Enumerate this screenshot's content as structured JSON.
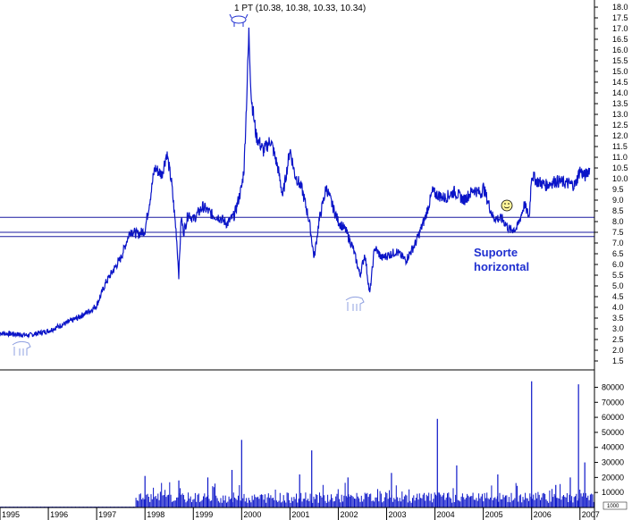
{
  "chart_data": {
    "type": "line",
    "title": "1 PT (10.38, 10.38, 10.33, 10.34)",
    "xlabel": "",
    "ylabel": "",
    "x_ticks": [
      "1995",
      "1996",
      "1997",
      "1998",
      "1999",
      "2000",
      "2001",
      "2002",
      "2003",
      "2004",
      "2005",
      "2006",
      "2007"
    ],
    "y_ticks": [
      "1.5",
      "2.0",
      "2.5",
      "3.0",
      "3.5",
      "4.0",
      "4.5",
      "5.0",
      "5.5",
      "6.0",
      "6.5",
      "7.0",
      "7.5",
      "8.0",
      "8.5",
      "9.0",
      "9.5",
      "10.0",
      "10.5",
      "11.0",
      "11.5",
      "12.0",
      "12.5",
      "13.0",
      "13.5",
      "14.0",
      "14.5",
      "15.0",
      "15.5",
      "16.0",
      "16.5",
      "17.0",
      "17.5",
      "18.0"
    ],
    "ylim": [
      1.5,
      18.0
    ],
    "xlim": [
      1995.0,
      2007.3
    ],
    "grid": false,
    "series": [
      {
        "values_x": [
          1995.0,
          1995.3,
          1995.6,
          1996.0,
          1996.3,
          1996.6,
          1996.9,
          1997.0,
          1997.2,
          1997.5,
          1997.7,
          1997.85,
          1998.0,
          1998.1,
          1998.2,
          1998.35,
          1998.45,
          1998.55,
          1998.65,
          1998.7,
          1998.75,
          1998.8,
          1998.9,
          1999.0,
          1999.2,
          1999.4,
          1999.55,
          1999.7,
          1999.85,
          2000.0,
          2000.05,
          2000.1,
          2000.15,
          2000.2,
          2000.3,
          2000.45,
          2000.6,
          2000.75,
          2000.85,
          2000.95,
          2001.0,
          2001.1,
          2001.25,
          2001.4,
          2001.5,
          2001.6,
          2001.75,
          2001.9,
          2002.0,
          2002.15,
          2002.3,
          2002.45,
          2002.55,
          2002.65,
          2002.75,
          2002.9,
          2003.0,
          2003.2,
          2003.4,
          2003.6,
          2003.8,
          2003.95,
          2004.0,
          2004.2,
          2004.4,
          2004.6,
          2004.8,
          2004.95,
          2005.0,
          2005.2,
          2005.4,
          2005.55,
          2005.7,
          2005.85,
          2005.95,
          2006.0,
          2006.1,
          2006.3,
          2006.5,
          2006.7,
          2006.9,
          2007.0,
          2007.1,
          2007.2
        ],
        "values_y": [
          2.8,
          2.75,
          2.7,
          2.9,
          3.2,
          3.5,
          3.9,
          4.1,
          5.2,
          6.3,
          7.6,
          7.4,
          7.6,
          9.0,
          10.5,
          10.2,
          11.2,
          9.8,
          7.4,
          5.5,
          8.2,
          7.5,
          8.4,
          8.1,
          8.7,
          8.3,
          8.2,
          7.9,
          8.3,
          9.6,
          10.5,
          13.5,
          16.8,
          13.8,
          12.0,
          11.3,
          11.8,
          10.5,
          9.2,
          10.6,
          11.4,
          10.2,
          9.5,
          8.0,
          6.3,
          8.0,
          9.6,
          8.6,
          8.0,
          7.6,
          6.8,
          5.5,
          6.5,
          4.6,
          6.8,
          6.3,
          6.4,
          6.6,
          6.2,
          7.0,
          8.2,
          9.4,
          9.3,
          9.1,
          9.4,
          9.0,
          9.5,
          9.3,
          9.6,
          8.2,
          8.1,
          7.6,
          7.7,
          8.8,
          8.2,
          10.2,
          9.9,
          9.7,
          9.9,
          9.8,
          9.7,
          10.4,
          10.1,
          10.5
        ]
      }
    ],
    "volume": {
      "y_ticks": [
        "10000",
        "20000",
        "30000",
        "40000",
        "50000",
        "60000",
        "70000",
        "80000"
      ],
      "ylim": [
        0,
        88000
      ],
      "spikes_x": [
        1998.0,
        1998.7,
        1999.3,
        1999.8,
        2000.0,
        2001.2,
        2001.45,
        2002.2,
        2003.1,
        2004.05,
        2004.45,
        2005.3,
        2006.0,
        2006.5,
        2006.8,
        2006.97,
        2007.1
      ],
      "spikes_y": [
        21000,
        18000,
        20000,
        25000,
        45000,
        22000,
        38000,
        20000,
        23000,
        59000,
        28000,
        22000,
        84000,
        15000,
        20000,
        82000,
        30000
      ],
      "scale_label": "1000"
    },
    "support_lines": [
      8.2,
      7.5,
      7.3
    ],
    "annotation": [
      "Suporte",
      "horizontal"
    ]
  }
}
